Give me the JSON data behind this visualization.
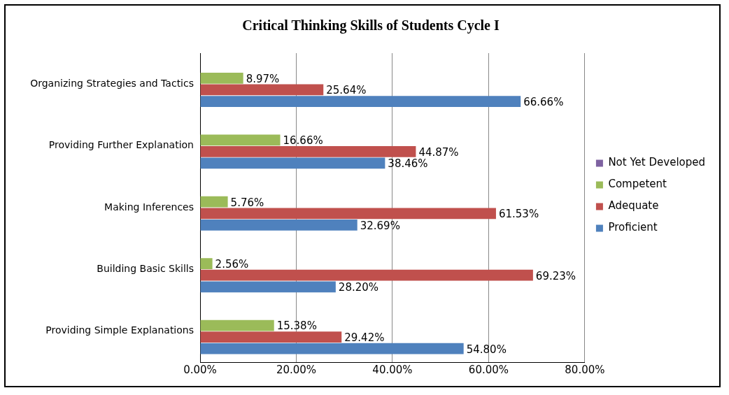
{
  "chart_data": {
    "type": "bar",
    "orientation": "horizontal",
    "title": "Critical Thinking Skills of Students Cycle I",
    "categories": [
      "Organizing Strategies and Tactics",
      "Providing Further Explanation",
      "Making Inferences",
      "Building Basic Skills",
      "Providing Simple Explanations"
    ],
    "series": [
      {
        "name": "Not Yet Developed",
        "color": "#7e62a1",
        "values": [
          null,
          null,
          null,
          null,
          null
        ]
      },
      {
        "name": "Competent",
        "color": "#9bbb59",
        "values": [
          8.97,
          16.66,
          5.76,
          2.56,
          15.38
        ],
        "value_labels": [
          "8.97%",
          "16.66%",
          "5.76%",
          "2.56%",
          "15.38%"
        ]
      },
      {
        "name": "Adequate",
        "color": "#c0504d",
        "values": [
          25.64,
          44.87,
          61.53,
          69.23,
          29.42
        ],
        "value_labels": [
          "25.64%",
          "44.87%",
          "61.53%",
          "69.23%",
          "29.42%"
        ]
      },
      {
        "name": "Proficient",
        "color": "#4f81bd",
        "values": [
          66.66,
          38.46,
          32.69,
          28.2,
          54.8
        ],
        "value_labels": [
          "66.66%",
          "38.46%",
          "32.69%",
          "28.20%",
          "54.80%"
        ]
      }
    ],
    "xlim": [
      0,
      80
    ],
    "xticks": [
      {
        "value": 0,
        "label": "0.00%"
      },
      {
        "value": 20,
        "label": "20.00%"
      },
      {
        "value": 40,
        "label": "40.00%"
      },
      {
        "value": 60,
        "label": "60.00%"
      },
      {
        "value": 80,
        "label": "80.00%"
      }
    ],
    "grid": "x",
    "legend": "right"
  }
}
